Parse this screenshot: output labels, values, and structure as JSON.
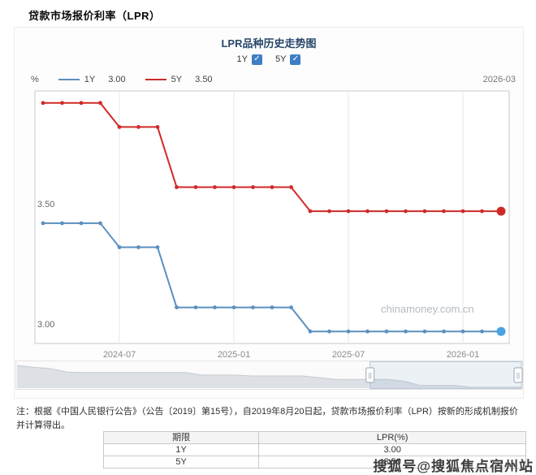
{
  "page": {
    "title": "贷款市场报价利率（LPR）"
  },
  "chart": {
    "title": "LPR品种历史走势图",
    "checkboxes": [
      {
        "label": "1Y",
        "checked": true
      },
      {
        "label": "5Y",
        "checked": true
      }
    ],
    "unit": "%",
    "current_date": "2026-03",
    "legend": [
      {
        "name": "1Y",
        "value": "3.00"
      },
      {
        "name": "5Y",
        "value": "3.50"
      }
    ]
  },
  "chart_data": {
    "type": "line",
    "title": "LPR品种历史走势图",
    "x": [
      "2024-03",
      "2024-04",
      "2024-05",
      "2024-06",
      "2024-07",
      "2024-08",
      "2024-09",
      "2024-10",
      "2024-11",
      "2024-12",
      "2025-01",
      "2025-02",
      "2025-03",
      "2025-04",
      "2025-05",
      "2025-06",
      "2025-07",
      "2025-08",
      "2025-09",
      "2025-10",
      "2025-11",
      "2025-12",
      "2026-01",
      "2026-02",
      "2026-03"
    ],
    "x_tick_labels": [
      "2024-07",
      "2025-01",
      "2025-07",
      "2026-01"
    ],
    "series": [
      {
        "name": "1Y",
        "color": "#5b8fc0",
        "end_color": "#49a4e3",
        "values": [
          3.45,
          3.45,
          3.45,
          3.45,
          3.35,
          3.35,
          3.35,
          3.1,
          3.1,
          3.1,
          3.1,
          3.1,
          3.1,
          3.1,
          3.0,
          3.0,
          3.0,
          3.0,
          3.0,
          3.0,
          3.0,
          3.0,
          3.0,
          3.0,
          3.0
        ]
      },
      {
        "name": "5Y",
        "color": "#cf2a27",
        "end_color": "#cf2a27",
        "values": [
          3.95,
          3.95,
          3.95,
          3.95,
          3.85,
          3.85,
          3.85,
          3.6,
          3.6,
          3.6,
          3.6,
          3.6,
          3.6,
          3.6,
          3.5,
          3.5,
          3.5,
          3.5,
          3.5,
          3.5,
          3.5,
          3.5,
          3.5,
          3.5,
          3.5
        ]
      }
    ],
    "ylim": [
      2.95,
      4.0
    ],
    "y_axis_labels": [
      {
        "value": 3.5,
        "label": "3.50"
      },
      {
        "value": 3.0,
        "label": "3.00"
      }
    ],
    "ylabel": "%",
    "grid": "vertical",
    "legend_position": "top",
    "watermark": "chinamoney.com.cn",
    "navigator": {
      "range": [
        2.95,
        4.35
      ],
      "selection": [
        0.7,
        1.0
      ],
      "profile": [
        4.25,
        4.15,
        4.07,
        3.87,
        3.85,
        3.85,
        3.85,
        3.85,
        3.85,
        3.85,
        3.85,
        3.7,
        3.7,
        3.7,
        3.65,
        3.65,
        3.65,
        3.65,
        3.55,
        3.45,
        3.45,
        3.45,
        3.45,
        3.35,
        3.1,
        3.1,
        3.1,
        3.0,
        3.0,
        3.0,
        3.0
      ]
    }
  },
  "note": "注：根据《中国人民银行公告》（公告〔2019〕第15号），自2019年8月20日起，贷款市场报价利率（LPR）按新的形成机制报价并计算得出。",
  "table": {
    "headers": [
      "期限",
      "LPR(%)"
    ],
    "rows": [
      [
        "1Y",
        "3.00"
      ],
      [
        "5Y",
        "3.50"
      ]
    ]
  },
  "watermark_overlay": "搜狐号@搜狐焦点宿州站"
}
